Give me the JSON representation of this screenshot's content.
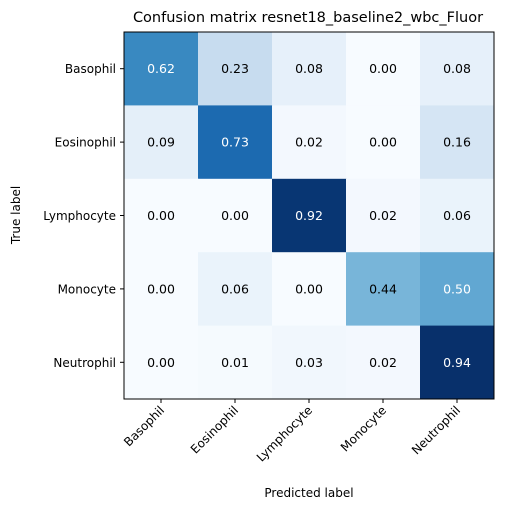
{
  "chart_data": {
    "type": "heatmap",
    "title": "Confusion matrix resnet18_baseline2_wbc_Fluor",
    "xlabel": "Predicted label",
    "ylabel": "True label",
    "x_categories": [
      "Basophil",
      "Eosinophil",
      "Lymphocyte",
      "Monocyte",
      "Neutrophil"
    ],
    "y_categories": [
      "Basophil",
      "Eosinophil",
      "Lymphocyte",
      "Monocyte",
      "Neutrophil"
    ],
    "values": [
      [
        0.62,
        0.23,
        0.08,
        0.0,
        0.08
      ],
      [
        0.09,
        0.73,
        0.02,
        0.0,
        0.16
      ],
      [
        0.0,
        0.0,
        0.92,
        0.02,
        0.06
      ],
      [
        0.0,
        0.06,
        0.0,
        0.44,
        0.5
      ],
      [
        0.0,
        0.01,
        0.03,
        0.02,
        0.94
      ]
    ],
    "value_format": "0.00",
    "colormap": "Blues",
    "vmin": 0.0,
    "vmax": 0.94,
    "text_threshold": 0.47
  }
}
